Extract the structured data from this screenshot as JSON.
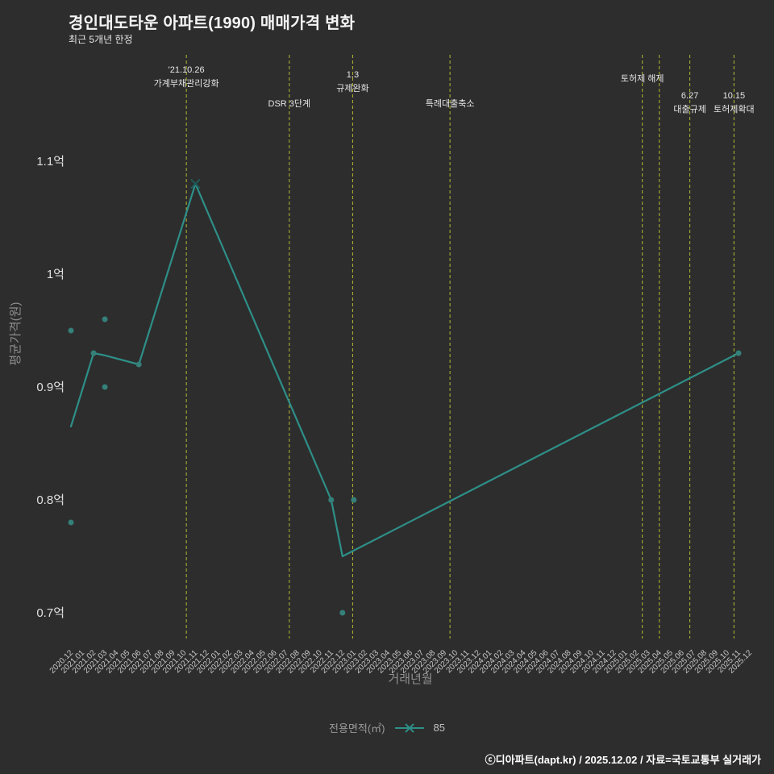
{
  "title": "경인대도타운 아파트(1990) 매매가격 변화",
  "subtitle": "최근 5개년 한정",
  "footer": "ⓒ디아파트(dapt.kr) / 2025.12.02 / 자료=국토교통부 실거래가",
  "legend": {
    "label": "전용면적(㎡)",
    "series_name": "85"
  },
  "colors": {
    "background": "#2d2d2d",
    "line": "#2e8f88",
    "dot": "#35807a",
    "annotation_line": "#b5b832",
    "annotation_text": "#e6e6e6",
    "y_tick_text": "#e0e0e0",
    "x_tick_text": "#c8c8c8",
    "axis_label_text": "#8f8f8f"
  },
  "chart_data": {
    "type": "line",
    "title": "경인대도타운 아파트(1990) 매매가격 변화",
    "subtitle": "최근 5개년 한정",
    "xlabel": "거래년월",
    "ylabel": "평균가격(원)",
    "ylim": [
      0.66,
      1.13
    ],
    "grid": false,
    "legend_position": "bottom-center",
    "y_ticks": [
      {
        "value": 0.7,
        "label": "0.7억"
      },
      {
        "value": 0.8,
        "label": "0.8억"
      },
      {
        "value": 0.9,
        "label": "0.9억"
      },
      {
        "value": 1.0,
        "label": "1억"
      },
      {
        "value": 1.1,
        "label": "1.1억"
      }
    ],
    "x_categories": [
      "2020.12",
      "2021.01",
      "2021.02",
      "2021.03",
      "2021.04",
      "2021.05",
      "2021.06",
      "2021.07",
      "2021.08",
      "2021.09",
      "2021.10",
      "2021.11",
      "2021.12",
      "2022.01",
      "2022.02",
      "2022.03",
      "2022.04",
      "2022.05",
      "2022.06",
      "2022.07",
      "2022.08",
      "2022.09",
      "2022.10",
      "2022.11",
      "2022.12",
      "2023.01",
      "2023.02",
      "2023.03",
      "2023.04",
      "2023.05",
      "2023.06",
      "2023.07",
      "2023.08",
      "2023.09",
      "2023.10",
      "2023.11",
      "2023.12",
      "2024.01",
      "2024.02",
      "2024.03",
      "2024.04",
      "2024.05",
      "2024.06",
      "2024.07",
      "2024.08",
      "2024.09",
      "2024.10",
      "2024.11",
      "2024.12",
      "2025.01",
      "2025.02",
      "2025.03",
      "2025.04",
      "2025.05",
      "2025.06",
      "2025.07",
      "2025.08",
      "2025.09",
      "2025.10",
      "2025.11",
      "2025.12"
    ],
    "series": [
      {
        "name": "85",
        "type": "line",
        "marker_at_peak": {
          "x": "2021.11",
          "y": 1.08
        },
        "points": [
          [
            "2020.12",
            0.865
          ],
          [
            "2021.02",
            0.93
          ],
          [
            "2021.03",
            0.928
          ],
          [
            "2021.06",
            0.92
          ],
          [
            "2021.11",
            1.08
          ],
          [
            "2022.11",
            0.8
          ],
          [
            "2022.12",
            0.75
          ],
          [
            "2025.11",
            0.93
          ]
        ]
      }
    ],
    "scatter_points": [
      [
        "2020.12",
        0.95
      ],
      [
        "2020.12",
        0.78
      ],
      [
        "2021.02",
        0.93
      ],
      [
        "2021.03",
        0.96
      ],
      [
        "2021.03",
        0.9
      ],
      [
        "2021.06",
        0.92
      ],
      [
        "2022.11",
        0.8
      ],
      [
        "2023.01",
        0.8
      ],
      [
        "2022.12",
        0.7
      ],
      [
        "2025.11",
        0.93
      ]
    ],
    "annotations": [
      {
        "x_index": 10.2,
        "lines": [
          "'21.10.26",
          "가계부채관리강화"
        ],
        "dy": 22
      },
      {
        "x_index": 19.3,
        "lines": [
          "DSR 3단계"
        ],
        "dy": 64
      },
      {
        "x_index": 24.9,
        "lines": [
          "1.3",
          "규제완화"
        ],
        "dy": 28
      },
      {
        "x_index": 33.5,
        "lines": [
          "특례대출축소"
        ],
        "dy": 64
      },
      {
        "x_index": 50.5,
        "lines": [
          "토허제 해제"
        ],
        "dy": 33
      },
      {
        "x_index": 52.0,
        "lines": [],
        "dy": 0
      },
      {
        "x_index": 54.7,
        "lines": [
          "6.27",
          "대출규제"
        ],
        "dy": 54
      },
      {
        "x_index": 58.6,
        "lines": [
          "10.15",
          "토허제확대"
        ],
        "dy": 54
      }
    ]
  }
}
